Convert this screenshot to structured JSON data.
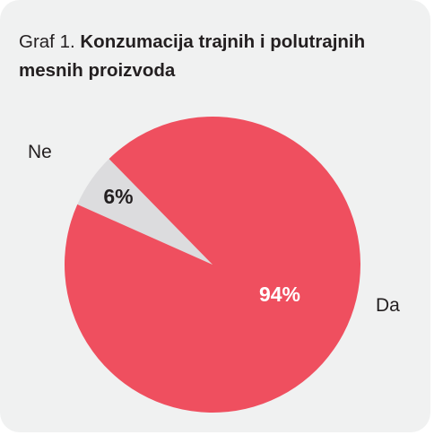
{
  "figure": {
    "prefix": "Graf 1.",
    "title": "Konzumacija trajnih i polutrajnih mesnih proizvoda"
  },
  "colors": {
    "background": "#f0f1f1",
    "da": "#ef4f5f",
    "ne": "#dcdcde",
    "text": "#231f20",
    "label_on_red": "#ffffff"
  },
  "chart_data": {
    "type": "pie",
    "title": "Konzumacija trajnih i polutrajnih mesnih proizvoda",
    "slices": [
      {
        "label": "Ne",
        "value": 6,
        "value_label": "6%",
        "color": "#dcdcde"
      },
      {
        "label": "Da",
        "value": 94,
        "value_label": "94%",
        "color": "#ef4f5f"
      }
    ]
  }
}
